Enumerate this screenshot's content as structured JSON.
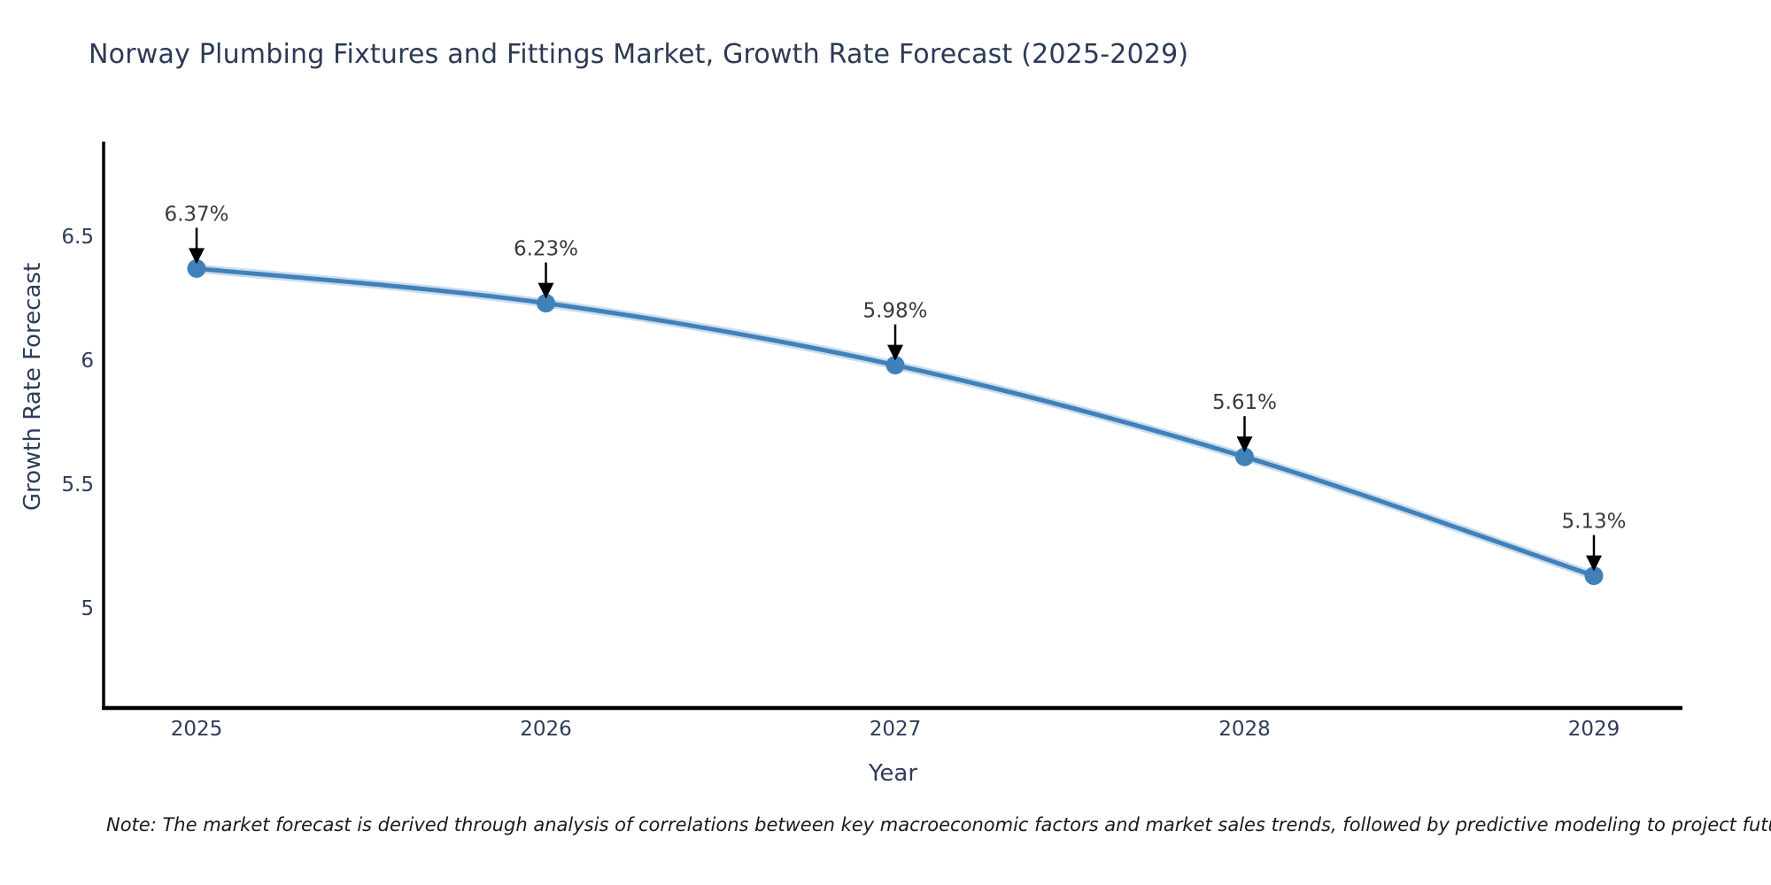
{
  "page": {
    "background": "#ffffff"
  },
  "note": "Note: The market forecast is derived through analysis of correlations between key macroeconomic factors and market sales trends, followed by predictive modeling to project future sales.",
  "chart_data": {
    "type": "line",
    "title": "Norway Plumbing Fixtures and Fittings Market, Growth Rate Forecast (2025-2029)",
    "xlabel": "Year",
    "ylabel": "Growth Rate Forecast",
    "x": [
      2025,
      2026,
      2027,
      2028,
      2029
    ],
    "values": [
      6.37,
      6.23,
      5.98,
      5.61,
      5.13
    ],
    "point_labels": [
      "6.37%",
      "6.23%",
      "5.98%",
      "5.61%",
      "5.13%"
    ],
    "xtick_labels": [
      "2025",
      "2026",
      "2027",
      "2028",
      "2029"
    ],
    "yticks": [
      6.5,
      6.0,
      5.5,
      5.0
    ],
    "ytick_labels": [
      "6.5",
      "6",
      "5.5",
      "5"
    ],
    "ylim": [
      4.6,
      6.88
    ],
    "xlim": [
      2024.73,
      2029.25
    ],
    "grid": false,
    "legend": "none",
    "annotation_arrows": "down-to-point",
    "colors": {
      "line": "#4181BA",
      "line_halo": "rgba(137,178,214,0.45)",
      "marker": "#4181BA",
      "axis": "#000000",
      "arrow": "#000000",
      "title_text": "#2C3A55",
      "tick_text": "#2E3C58",
      "annotation_text": "#3A3A3A",
      "note_text": "#1A1A1A"
    }
  }
}
